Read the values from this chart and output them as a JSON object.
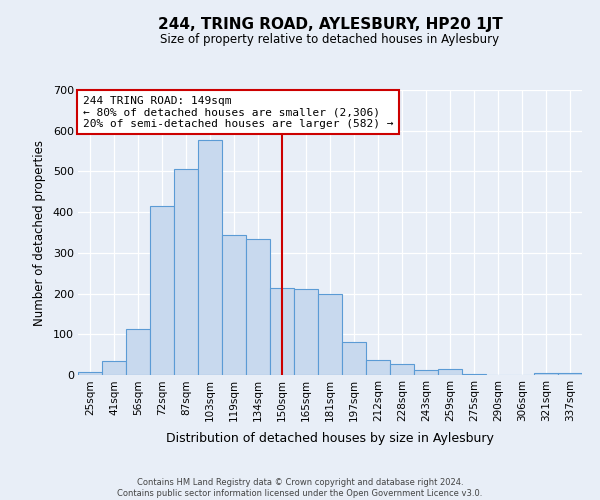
{
  "title": "244, TRING ROAD, AYLESBURY, HP20 1JT",
  "subtitle": "Size of property relative to detached houses in Aylesbury",
  "xlabel": "Distribution of detached houses by size in Aylesbury",
  "ylabel": "Number of detached properties",
  "bar_labels": [
    "25sqm",
    "41sqm",
    "56sqm",
    "72sqm",
    "87sqm",
    "103sqm",
    "119sqm",
    "134sqm",
    "150sqm",
    "165sqm",
    "181sqm",
    "197sqm",
    "212sqm",
    "228sqm",
    "243sqm",
    "259sqm",
    "275sqm",
    "290sqm",
    "306sqm",
    "321sqm",
    "337sqm"
  ],
  "bar_values": [
    8,
    35,
    112,
    415,
    505,
    578,
    345,
    333,
    213,
    212,
    200,
    80,
    38,
    26,
    12,
    14,
    3,
    0,
    0,
    6,
    6
  ],
  "bar_color": "#c8d9ee",
  "bar_edge_color": "#5b9bd5",
  "vline_x": 8,
  "vline_color": "#cc0000",
  "annotation_title": "244 TRING ROAD: 149sqm",
  "annotation_line1": "← 80% of detached houses are smaller (2,306)",
  "annotation_line2": "20% of semi-detached houses are larger (582) →",
  "annotation_box_color": "#cc0000",
  "ylim": [
    0,
    700
  ],
  "yticks": [
    0,
    100,
    200,
    300,
    400,
    500,
    600,
    700
  ],
  "bg_color": "#e8eef7",
  "footer1": "Contains HM Land Registry data © Crown copyright and database right 2024.",
  "footer2": "Contains public sector information licensed under the Open Government Licence v3.0."
}
